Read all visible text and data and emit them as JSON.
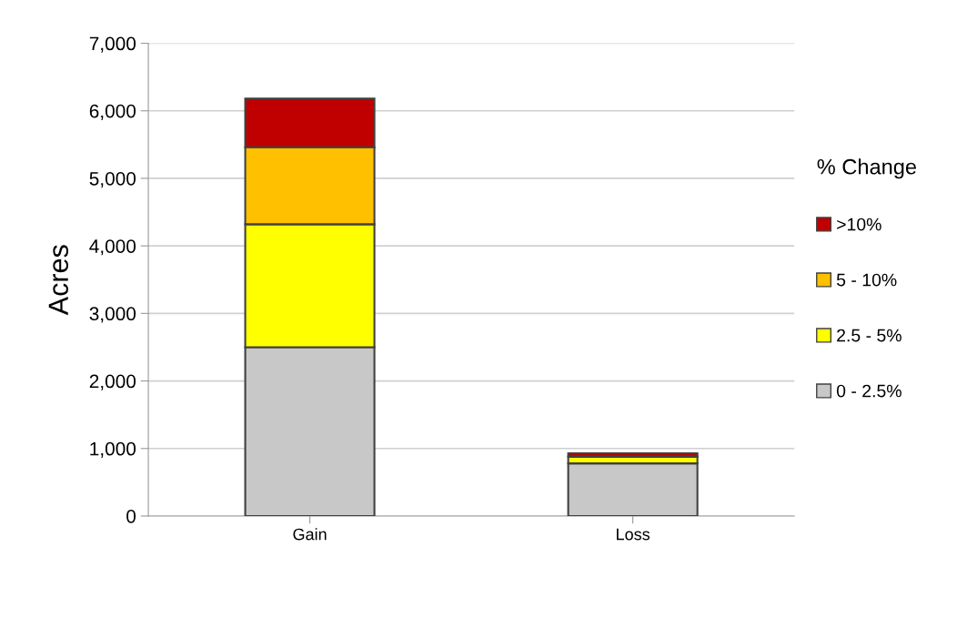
{
  "chart_data": {
    "type": "bar",
    "stacked": true,
    "ylabel": "Acres",
    "legend_title": "% Change",
    "categories": [
      "Gain",
      "Loss"
    ],
    "series": [
      {
        "name": "0 - 2.5%",
        "color": "#c8c8c8",
        "values": [
          2500,
          780
        ]
      },
      {
        "name": "2.5 - 5%",
        "color": "#ffff00",
        "values": [
          1820,
          100
        ]
      },
      {
        "name": "5 - 10%",
        "color": "#ffc000",
        "values": [
          1140,
          null
        ]
      },
      {
        "name": ">10%",
        "color": "#c00000",
        "values": [
          720,
          50
        ]
      }
    ],
    "ylim": [
      0,
      7000
    ],
    "yticks": [
      {
        "value": 0,
        "label": "0"
      },
      {
        "value": 1000,
        "label": "1,000"
      },
      {
        "value": 2000,
        "label": "2,000"
      },
      {
        "value": 3000,
        "label": "3,000"
      },
      {
        "value": 4000,
        "label": "4,000"
      },
      {
        "value": 5000,
        "label": "5,000"
      },
      {
        "value": 6000,
        "label": "6,000"
      },
      {
        "value": 7000,
        "label": "7,000"
      }
    ],
    "grid": "y",
    "legend": "right"
  }
}
